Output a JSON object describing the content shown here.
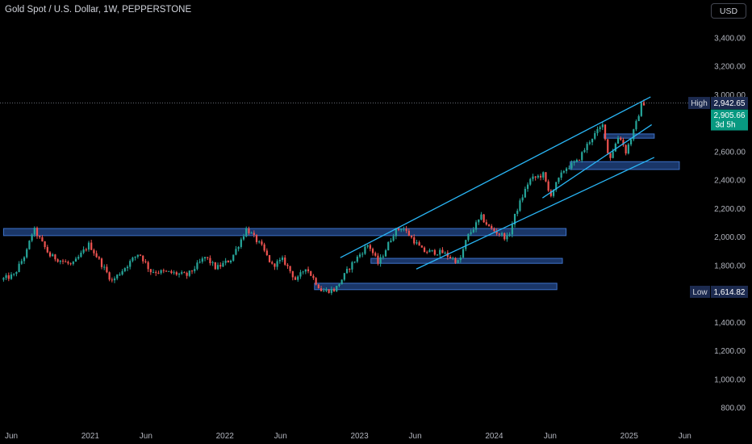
{
  "header": {
    "title": "Gold Spot / U.S. Dollar, 1W, PEPPERSTONE",
    "currency": "USD"
  },
  "colors": {
    "background": "#000000",
    "up": "#26a69a",
    "down": "#ef5350",
    "channel": "#29b6f6",
    "zone_fill": "#1e3f7a",
    "zone_stroke": "#3d72c9",
    "price_tag": "#089981",
    "high_low_tag": "#1c2a4f",
    "text": "#b2b5be"
  },
  "chart_data": {
    "type": "candlestick",
    "y_axis": {
      "min": 700,
      "max": 3500,
      "ticks": [
        800,
        1000,
        1200,
        1400,
        1600,
        1800,
        2000,
        2200,
        2400,
        2600,
        2800,
        3000,
        3200,
        3400
      ],
      "tick_labels": [
        "800.00",
        "1,000.00",
        "1,200.00",
        "1,400.00",
        "1,600.00",
        "1,800.00",
        "2,000.00",
        "2,200.00",
        "2,400.00",
        "2,600.00",
        "2,800.00",
        "3,000.00",
        "3,200.00",
        "3,400.00"
      ]
    },
    "x_axis": {
      "start": "2020-06-01",
      "end": "2025-06-08",
      "tick_dates": [
        "2020-06-01",
        "2021-01-01",
        "2021-06-01",
        "2022-01-01",
        "2022-06-01",
        "2023-01-01",
        "2023-06-01",
        "2024-01-01",
        "2024-06-01",
        "2025-01-01",
        "2025-06-01"
      ],
      "tick_labels": [
        "Jun",
        "2021",
        "Jun",
        "2022",
        "Jun",
        "2023",
        "Jun",
        "2024",
        "Jun",
        "2025",
        "Jun"
      ]
    },
    "price_path": [
      [
        "2020-05-11",
        1700
      ],
      [
        "2020-06-15",
        1730
      ],
      [
        "2020-07-20",
        1900
      ],
      [
        "2020-08-07",
        2060
      ],
      [
        "2020-09-20",
        1870
      ],
      [
        "2020-11-20",
        1800
      ],
      [
        "2021-01-05",
        1950
      ],
      [
        "2021-03-08",
        1690
      ],
      [
        "2021-05-20",
        1890
      ],
      [
        "2021-06-20",
        1760
      ],
      [
        "2021-08-10",
        1750
      ],
      [
        "2021-09-28",
        1730
      ],
      [
        "2021-11-16",
        1860
      ],
      [
        "2021-12-15",
        1780
      ],
      [
        "2022-01-25",
        1845
      ],
      [
        "2022-03-08",
        2060
      ],
      [
        "2022-04-18",
        1930
      ],
      [
        "2022-05-16",
        1800
      ],
      [
        "2022-06-15",
        1840
      ],
      [
        "2022-07-21",
        1690
      ],
      [
        "2022-08-15",
        1790
      ],
      [
        "2022-09-28",
        1620
      ],
      [
        "2022-11-03",
        1630
      ],
      [
        "2022-12-15",
        1800
      ],
      [
        "2023-02-01",
        1950
      ],
      [
        "2023-02-28",
        1810
      ],
      [
        "2023-04-13",
        2040
      ],
      [
        "2023-05-04",
        2070
      ],
      [
        "2023-06-29",
        1900
      ],
      [
        "2023-08-21",
        1890
      ],
      [
        "2023-10-05",
        1820
      ],
      [
        "2023-10-27",
        2000
      ],
      [
        "2023-12-04",
        2140
      ],
      [
        "2023-12-28",
        2060
      ],
      [
        "2024-02-14",
        1990
      ],
      [
        "2024-03-08",
        2180
      ],
      [
        "2024-04-12",
        2400
      ],
      [
        "2024-05-20",
        2440
      ],
      [
        "2024-06-07",
        2290
      ],
      [
        "2024-07-17",
        2480
      ],
      [
        "2024-08-20",
        2530
      ],
      [
        "2024-09-26",
        2690
      ],
      [
        "2024-10-30",
        2790
      ],
      [
        "2024-11-14",
        2540
      ],
      [
        "2024-12-12",
        2720
      ],
      [
        "2024-12-30",
        2600
      ],
      [
        "2025-01-24",
        2770
      ],
      [
        "2025-02-11",
        2942
      ]
    ],
    "high": {
      "label": "High",
      "value": "2,942.65",
      "y": 2942.65
    },
    "last": {
      "value": "2,905.66",
      "countdown": "3d 5h",
      "y": 2905.66
    },
    "low": {
      "label": "Low",
      "value": "1,614.82",
      "y": 1614.82
    },
    "zones": [
      {
        "x1": "2020-05-11",
        "x2": "2024-07-14",
        "y1": 2010,
        "y2": 2060
      },
      {
        "x1": "2023-02-01",
        "x2": "2024-07-04",
        "y1": 1815,
        "y2": 1850
      },
      {
        "x1": "2022-09-01",
        "x2": "2024-06-19",
        "y1": 1630,
        "y2": 1675
      },
      {
        "x1": "2024-07-25",
        "x2": "2025-05-17",
        "y1": 2475,
        "y2": 2530
      },
      {
        "x1": "2024-10-25",
        "x2": "2025-03-10",
        "y1": 2695,
        "y2": 2725
      }
    ],
    "trendlines": [
      {
        "from": [
          "2022-11-10",
          1855
        ],
        "to": [
          "2025-02-28",
          2985
        ]
      },
      {
        "from": [
          "2023-06-04",
          1775
        ],
        "to": [
          "2025-03-10",
          2560
        ]
      },
      {
        "from": [
          "2024-05-11",
          2275
        ],
        "to": [
          "2025-03-03",
          2790
        ]
      }
    ]
  }
}
